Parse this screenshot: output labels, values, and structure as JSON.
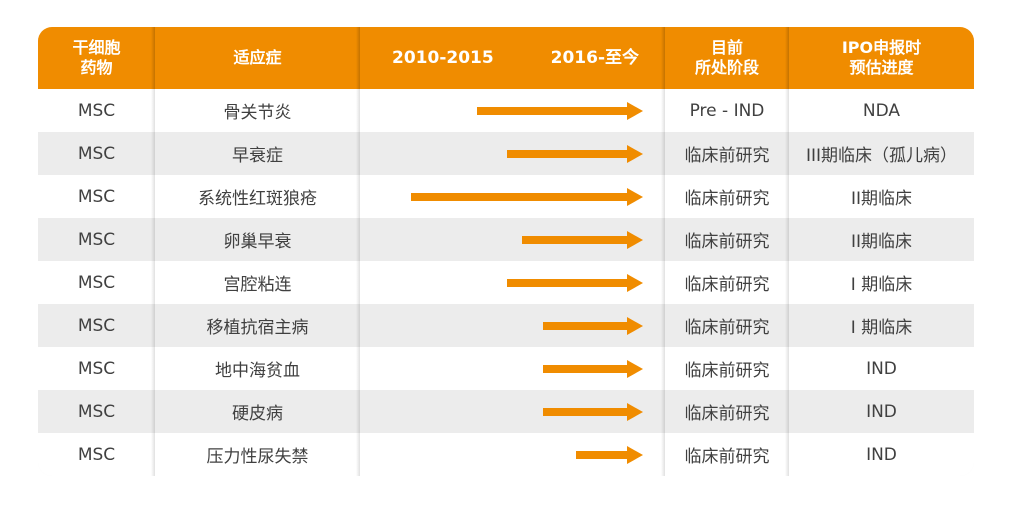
{
  "header": {
    "drug": "干细胞\n药物",
    "indication": "适应症",
    "period1": "2010-2015",
    "period2": "2016-至今",
    "stage": "目前\n所处阶段",
    "ipo": "IPO申报时\n预估进度"
  },
  "rows": [
    {
      "drug": "MSC",
      "indication": "骨关节炎",
      "stage": "Pre - IND",
      "ipo": "NDA",
      "start": 2014.0
    },
    {
      "drug": "MSC",
      "indication": "早衰症",
      "stage": "临床前研究",
      "ipo": "III期临床（孤儿病）",
      "start": 2015.0
    },
    {
      "drug": "MSC",
      "indication": "系统性红斑狼疮",
      "stage": "临床前研究",
      "ipo": "II期临床",
      "start": 2011.8
    },
    {
      "drug": "MSC",
      "indication": "卵巢早衰",
      "stage": "临床前研究",
      "ipo": "II期临床",
      "start": 2015.5
    },
    {
      "drug": "MSC",
      "indication": "宫腔粘连",
      "stage": "临床前研究",
      "ipo": "I 期临床",
      "start": 2015.0
    },
    {
      "drug": "MSC",
      "indication": "移植抗宿主病",
      "stage": "临床前研究",
      "ipo": "I 期临床",
      "start": 2016.2
    },
    {
      "drug": "MSC",
      "indication": "地中海贫血",
      "stage": "临床前研究",
      "ipo": "IND",
      "start": 2016.2
    },
    {
      "drug": "MSC",
      "indication": "硬皮病",
      "stage": "临床前研究",
      "ipo": "IND",
      "start": 2016.2
    },
    {
      "drug": "MSC",
      "indication": "压力性尿失禁",
      "stage": "临床前研究",
      "ipo": "IND",
      "start": 2017.3
    }
  ],
  "colors": {
    "accent": "#f08c00",
    "row_alt": "#ececec",
    "row": "#ffffff",
    "text": "#404040"
  }
}
